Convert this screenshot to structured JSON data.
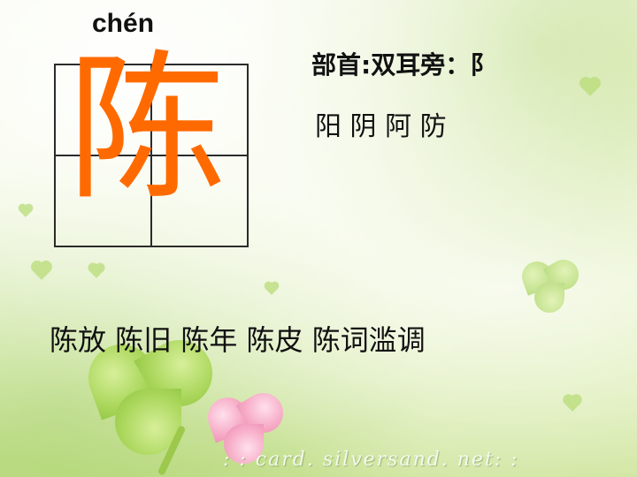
{
  "slide": {
    "pinyin": "chén",
    "character": "陈",
    "radical_line": "部首:双耳旁：阝",
    "related_chars": "阳 阴  阿 防",
    "words": "陈放  陈旧  陈年  陈皮   陈词滥调",
    "watermark": ": : card. silversand. net: :"
  },
  "colors": {
    "character": "#ff6a00",
    "grid": "#2b2b2b",
    "text": "#111111"
  }
}
